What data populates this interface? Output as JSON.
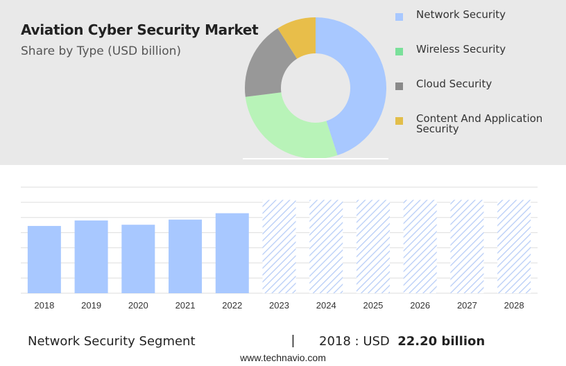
{
  "header": {
    "title": "Aviation Cyber Security Market",
    "subtitle": "Share by Type (USD billion)"
  },
  "colors": {
    "network": "#a8c8ff",
    "wireless": "#b8f3b8",
    "cloud": "#989898",
    "content": "#e8be4a",
    "legend_network": "#a8c8ff",
    "legend_wireless": "#7ae09a",
    "legend_cloud": "#8a8a8a",
    "legend_content": "#e2be4a",
    "hatch": "#b7cdf7",
    "grid": "#dddddd"
  },
  "chart_data": [
    {
      "type": "pie",
      "title": "Aviation Cyber Security Market",
      "subtitle": "Share by Type (USD billion)",
      "donut": true,
      "legend_position": "right",
      "slices": [
        {
          "label": "Network Security",
          "value": 45
        },
        {
          "label": "Wireless Security",
          "value": 28
        },
        {
          "label": "Cloud Security",
          "value": 18
        },
        {
          "label": "Content And Application Security",
          "value": 9
        }
      ]
    },
    {
      "type": "bar",
      "categories": [
        "2018",
        "2019",
        "2020",
        "2021",
        "2022",
        "2023",
        "2024",
        "2025",
        "2026",
        "2027",
        "2028"
      ],
      "values": [
        22.2,
        24.0,
        22.6,
        24.3,
        26.4,
        null,
        null,
        null,
        null,
        null,
        null
      ],
      "forecast_categories": [
        "2023",
        "2024",
        "2025",
        "2026",
        "2027",
        "2028"
      ],
      "ylim": [
        0,
        35
      ],
      "grid": true
    }
  ],
  "footer": {
    "segment": "Network Security Segment",
    "divider": "|",
    "value_prefix": "2018 : USD",
    "value": "22.20 billion",
    "url": "www.technavio.com"
  }
}
